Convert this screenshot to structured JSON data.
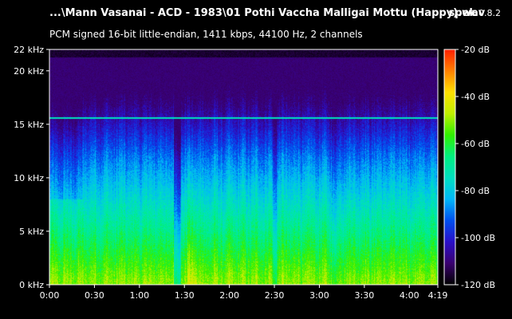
{
  "header": {
    "file_title": "...\\Mann Vasanai - ACD - 1983\\01 Pothi Vaccha Malligai Mottu (Happy).wav",
    "app_name": "spek",
    "app_version": "0.8.2",
    "format_info": "PCM signed 16-bit little-endian, 1411 kbps, 44100 Hz, 2 channels"
  },
  "chart_data": {
    "type": "heatmap",
    "x_ticks": [
      {
        "value": 0,
        "label": "0:00"
      },
      {
        "value": 30,
        "label": "0:30"
      },
      {
        "value": 60,
        "label": "1:00"
      },
      {
        "value": 90,
        "label": "1:30"
      },
      {
        "value": 120,
        "label": "2:00"
      },
      {
        "value": 150,
        "label": "2:30"
      },
      {
        "value": 180,
        "label": "3:00"
      },
      {
        "value": 210,
        "label": "3:30"
      },
      {
        "value": 240,
        "label": "4:00"
      },
      {
        "value": 259,
        "label": "4:19"
      }
    ],
    "xlim": [
      0,
      259
    ],
    "y_ticks": [
      {
        "value": 0,
        "label": "0 kHz"
      },
      {
        "value": 5,
        "label": "5 kHz"
      },
      {
        "value": 10,
        "label": "10 kHz"
      },
      {
        "value": 15,
        "label": "15 kHz"
      },
      {
        "value": 20,
        "label": "20 kHz"
      },
      {
        "value": 22,
        "label": "22 kHz"
      }
    ],
    "ylim": [
      0,
      22
    ],
    "colorbar": {
      "ticks": [
        {
          "value": -20,
          "label": "-20 dB"
        },
        {
          "value": -40,
          "label": "-40 dB"
        },
        {
          "value": -60,
          "label": "-60 dB"
        },
        {
          "value": -80,
          "label": "-80 dB"
        },
        {
          "value": -100,
          "label": "-100 dB"
        },
        {
          "value": -120,
          "label": "-120 dB"
        }
      ],
      "range": [
        -120,
        -20
      ],
      "colors": [
        "#000000",
        "#3a0070",
        "#2a10c8",
        "#0050f0",
        "#00b8f8",
        "#00e0c0",
        "#00f080",
        "#30f000",
        "#c0f000",
        "#ffe000",
        "#ff8000",
        "#ff2000"
      ]
    },
    "features": {
      "cutoff_khz": 21.3,
      "tone_line_khz": 15.6,
      "intro_end_s": 22
    }
  }
}
